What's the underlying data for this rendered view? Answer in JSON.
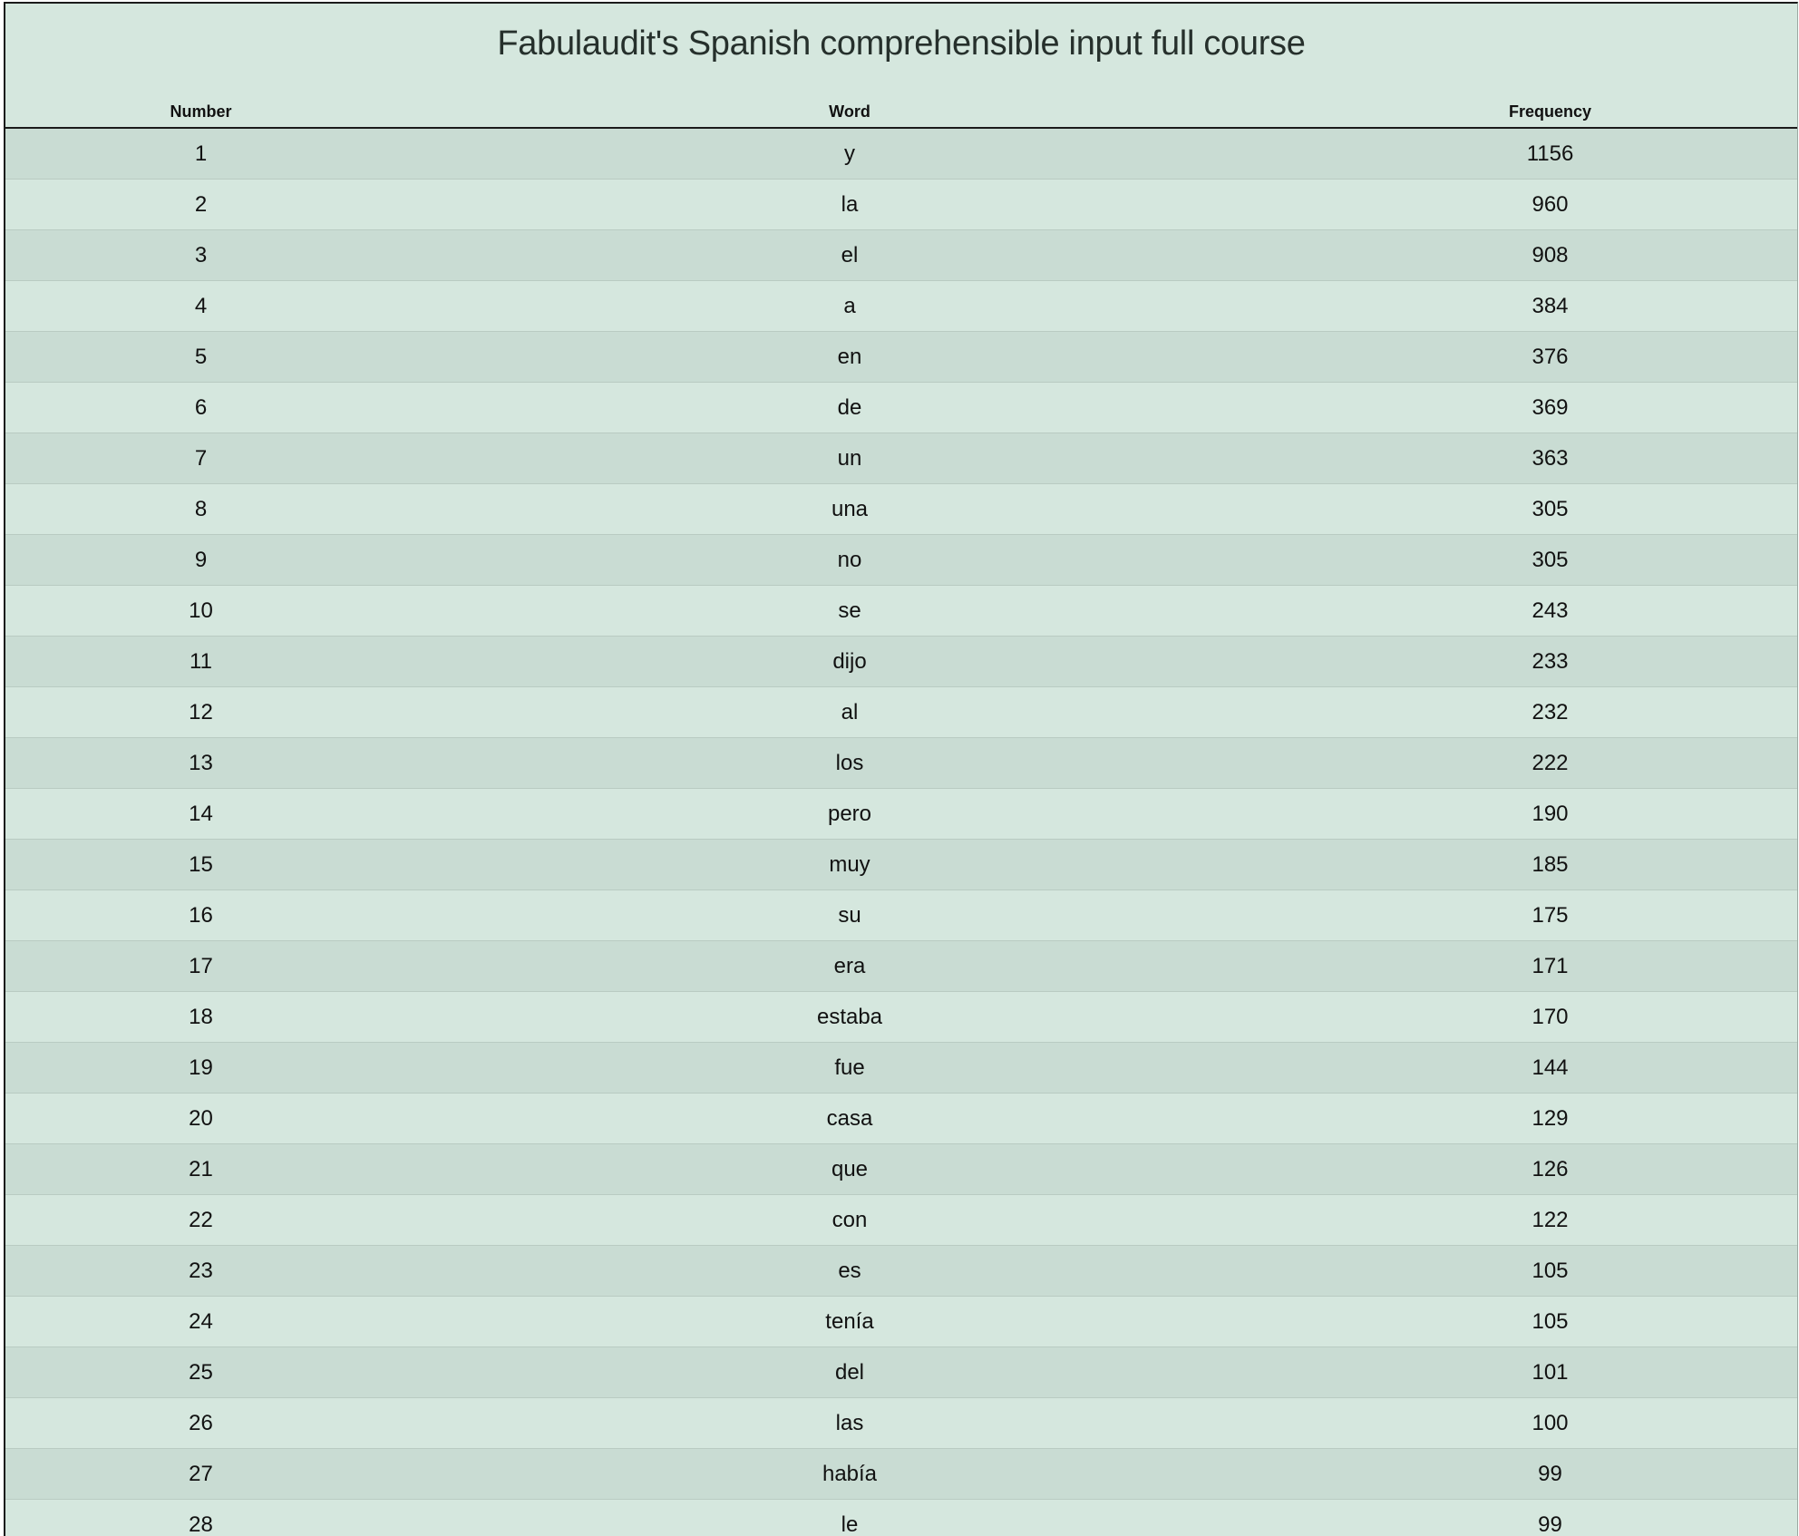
{
  "title": "Fabulaudit's Spanish comprehensible input full course",
  "columns": {
    "number": "Number",
    "word": "Word",
    "frequency": "Frequency"
  },
  "rows": [
    {
      "number": "1",
      "word": "y",
      "frequency": "1156"
    },
    {
      "number": "2",
      "word": "la",
      "frequency": "960"
    },
    {
      "number": "3",
      "word": "el",
      "frequency": "908"
    },
    {
      "number": "4",
      "word": "a",
      "frequency": "384"
    },
    {
      "number": "5",
      "word": "en",
      "frequency": "376"
    },
    {
      "number": "6",
      "word": "de",
      "frequency": "369"
    },
    {
      "number": "7",
      "word": "un",
      "frequency": "363"
    },
    {
      "number": "8",
      "word": "una",
      "frequency": "305"
    },
    {
      "number": "9",
      "word": "no",
      "frequency": "305"
    },
    {
      "number": "10",
      "word": "se",
      "frequency": "243"
    },
    {
      "number": "11",
      "word": "dijo",
      "frequency": "233"
    },
    {
      "number": "12",
      "word": "al",
      "frequency": "232"
    },
    {
      "number": "13",
      "word": "los",
      "frequency": "222"
    },
    {
      "number": "14",
      "word": "pero",
      "frequency": "190"
    },
    {
      "number": "15",
      "word": "muy",
      "frequency": "185"
    },
    {
      "number": "16",
      "word": "su",
      "frequency": "175"
    },
    {
      "number": "17",
      "word": "era",
      "frequency": "171"
    },
    {
      "number": "18",
      "word": "estaba",
      "frequency": "170"
    },
    {
      "number": "19",
      "word": "fue",
      "frequency": "144"
    },
    {
      "number": "20",
      "word": "casa",
      "frequency": "129"
    },
    {
      "number": "21",
      "word": "que",
      "frequency": "126"
    },
    {
      "number": "22",
      "word": "con",
      "frequency": "122"
    },
    {
      "number": "23",
      "word": "es",
      "frequency": "105"
    },
    {
      "number": "24",
      "word": "tenía",
      "frequency": "105"
    },
    {
      "number": "25",
      "word": "del",
      "frequency": "101"
    },
    {
      "number": "26",
      "word": "las",
      "frequency": "100"
    },
    {
      "number": "27",
      "word": "había",
      "frequency": "99"
    },
    {
      "number": "28",
      "word": "le",
      "frequency": "99"
    }
  ]
}
